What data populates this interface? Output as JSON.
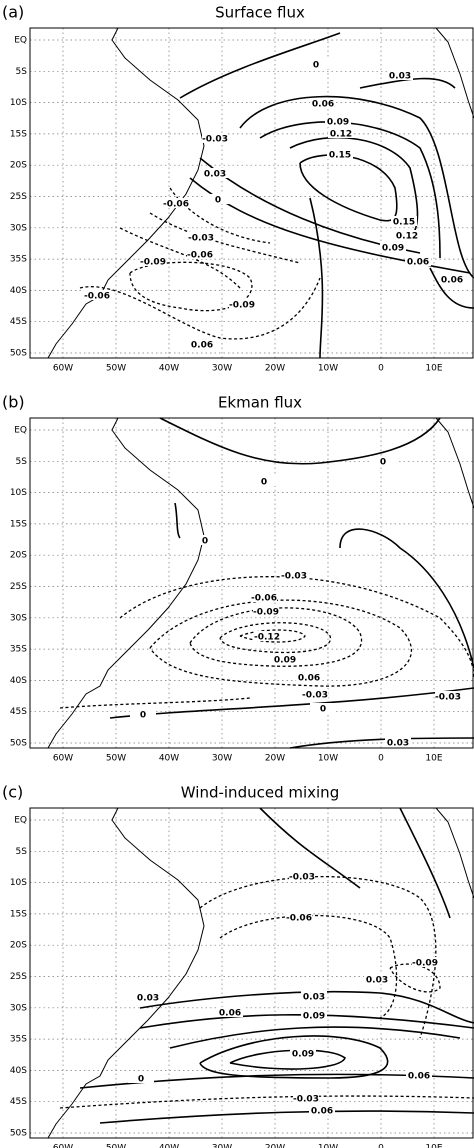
{
  "x_labels": [
    "60W",
    "50W",
    "40W",
    "30W",
    "20W",
    "10W",
    "0",
    "10E"
  ],
  "y_labels": [
    "EQ",
    "5S",
    "10S",
    "15S",
    "20S",
    "25S",
    "30S",
    "35S",
    "40S",
    "45S",
    "50S"
  ],
  "panels": [
    {
      "label": "(a)",
      "title": "Surface flux",
      "contour_labels": [
        "0",
        "0.03",
        "0.06",
        "0.09",
        "-0.03",
        "0.12",
        "0.15",
        "0.03",
        "-0.06",
        "0",
        "0.15",
        "0.12",
        "0.09",
        "-0.03",
        "-0.06",
        "-0.09",
        "0.06",
        "-0.06",
        "-0.09",
        "0.06",
        "0.06"
      ]
    },
    {
      "label": "(b)",
      "title": "Ekman flux",
      "contour_labels": [
        "0",
        "0",
        "0",
        "-0.03",
        "-0.06",
        "-0.09",
        "-0.12",
        "0.09",
        "0.06",
        "-0.03",
        "-0.03",
        "0",
        "0",
        "0.03"
      ]
    },
    {
      "label": "(c)",
      "title": "Wind-induced mixing",
      "contour_labels": [
        "-0.03",
        "-0.06",
        "-0.09",
        "0.03",
        "0.03",
        "0.03",
        "0.06",
        "0.09",
        "0.09",
        "0.06",
        "0",
        "-0.03",
        "0.06"
      ]
    }
  ]
}
